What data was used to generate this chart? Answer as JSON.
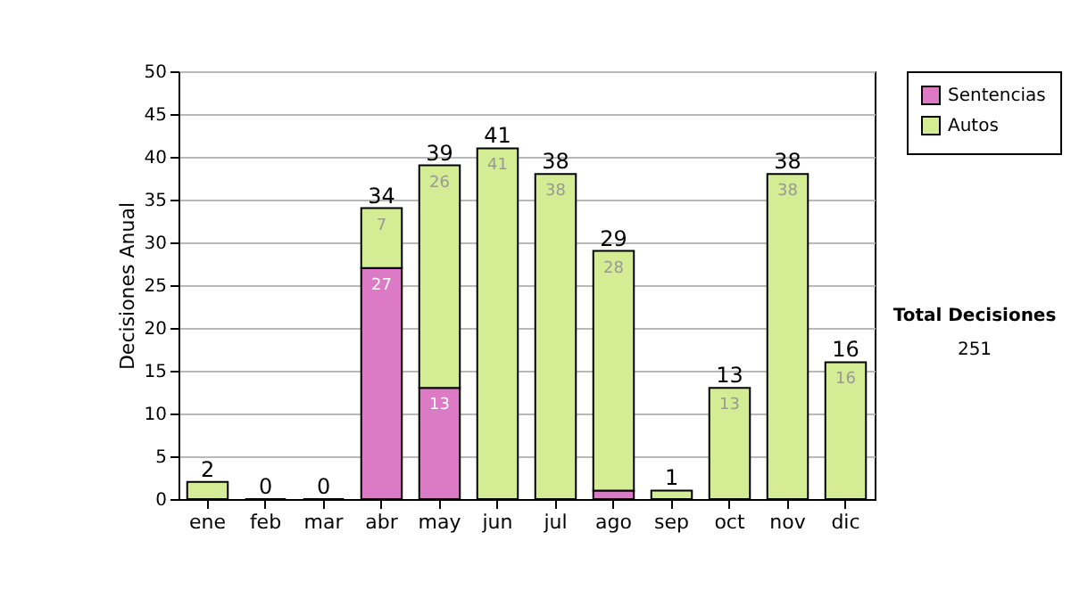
{
  "chart_data": {
    "type": "bar",
    "ylabel": "Decisiones Anual",
    "categories": [
      "ene",
      "feb",
      "mar",
      "abr",
      "may",
      "jun",
      "jul",
      "ago",
      "sep",
      "oct",
      "nov",
      "dic"
    ],
    "series": [
      {
        "name": "Sentencias",
        "color": "#dd7ac6",
        "values": [
          null,
          null,
          null,
          27,
          13,
          null,
          null,
          1,
          null,
          null,
          null,
          null
        ],
        "value_labels": [
          null,
          null,
          null,
          "27",
          "13",
          null,
          null,
          null,
          null,
          null,
          null,
          null
        ]
      },
      {
        "name": "Autos",
        "color": "#d4ec94",
        "values": [
          2,
          0,
          0,
          7,
          26,
          41,
          38,
          28,
          1,
          13,
          38,
          16
        ],
        "value_labels": [
          null,
          null,
          null,
          "7",
          "26",
          "41",
          "38",
          "28",
          null,
          "13",
          "38",
          "16"
        ]
      }
    ],
    "stacked": true,
    "totals": [
      "2",
      "0",
      "0",
      "34",
      "39",
      "41",
      "38",
      "29",
      "1",
      "13",
      "38",
      "16"
    ],
    "ylim": [
      0,
      50
    ],
    "yticks": [
      0,
      5,
      10,
      15,
      20,
      25,
      30,
      35,
      40,
      45,
      50
    ],
    "grid": "y",
    "legend": "right",
    "annotations": [
      "Total Decisiones",
      "251"
    ]
  }
}
